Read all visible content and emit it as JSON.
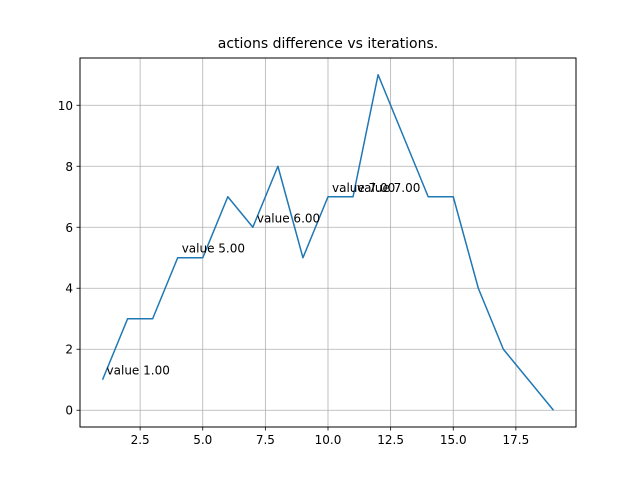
{
  "chart_data": {
    "type": "line",
    "title": "actions difference vs iterations.",
    "xlabel": "",
    "ylabel": "",
    "xlim": [
      0.1,
      19.9
    ],
    "ylim": [
      -0.55,
      11.55
    ],
    "x_ticks": [
      2.5,
      5.0,
      7.5,
      10.0,
      12.5,
      15.0,
      17.5
    ],
    "x_tick_labels": [
      "2.5",
      "5.0",
      "7.5",
      "10.0",
      "12.5",
      "15.0",
      "17.5"
    ],
    "y_ticks": [
      0,
      2,
      4,
      6,
      8,
      10
    ],
    "y_tick_labels": [
      "0",
      "2",
      "4",
      "6",
      "8",
      "10"
    ],
    "grid": true,
    "series": [
      {
        "color": "#1f77b4",
        "x": [
          1,
          2,
          3,
          4,
          5,
          6,
          7,
          8,
          9,
          10,
          11,
          12,
          13,
          14,
          15,
          16,
          17,
          18,
          19
        ],
        "y": [
          1,
          3,
          3,
          5,
          5,
          7,
          6,
          8,
          5,
          7,
          7,
          11,
          9,
          7,
          7,
          4,
          2,
          1,
          0
        ]
      }
    ],
    "annotations": [
      {
        "x": 1,
        "y": 1,
        "text": "value 1.00"
      },
      {
        "x": 4,
        "y": 5,
        "text": "value 5.00"
      },
      {
        "x": 7,
        "y": 6,
        "text": "value 6.00"
      },
      {
        "x": 10,
        "y": 7,
        "text": "value 7.00"
      },
      {
        "x": 11,
        "y": 7,
        "text": "value 7.00"
      }
    ]
  }
}
